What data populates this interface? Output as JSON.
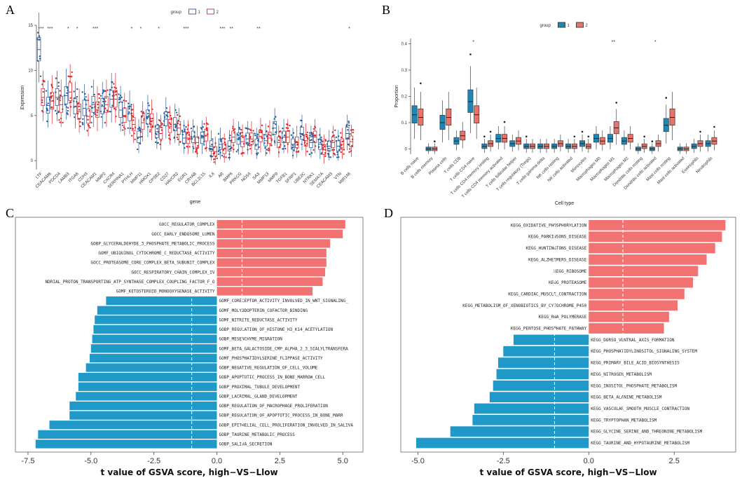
{
  "panels": {
    "a": "A",
    "b": "B",
    "c": "C",
    "d": "D"
  },
  "chart_data": [
    {
      "id": "A",
      "type": "box",
      "legend": {
        "title": "group",
        "entries": [
          "1",
          "2"
        ],
        "placement": "top"
      },
      "colors": {
        "1": "#2a5f9e",
        "2": "#e0262b"
      },
      "xlabel": "gene",
      "ylabel": "Expression",
      "ylim": [
        -1,
        15
      ],
      "yticks": [
        0,
        5,
        10,
        15
      ],
      "categories": [
        "LTF",
        "CEACAM6",
        "PDCD4",
        "LAMB3",
        "ITGA6",
        "CDH3",
        "CEACAM1",
        "MMP2",
        "CXCR4",
        "SERPINA1",
        "PTHLH",
        "MMP11",
        "HMOX1",
        "CPSB2",
        "CD27",
        "HAVCR2",
        "EGR1",
        "CRYAB",
        "BCL2L15",
        "IL6",
        "AR",
        "BMP6",
        "PRKCG",
        "NOS4",
        "SAX",
        "MMP13",
        "MMP9",
        "TGFB1",
        "SFRP1",
        "UBE2C",
        "NTRK1",
        "SEMA7A",
        "CEACAM3",
        "VTN",
        "MIR146"
      ],
      "significance": [
        "***",
        "***",
        "",
        "*",
        "*",
        "",
        "***",
        "",
        "",
        "",
        "*",
        "*",
        "",
        "*",
        "",
        "",
        "***",
        "",
        "",
        "",
        "***",
        "**",
        "",
        "",
        "**",
        "",
        "",
        "",
        "",
        "",
        "",
        "",
        "",
        "",
        "*"
      ],
      "series": [
        {
          "name": "1",
          "median": [
            12.3,
            6.1,
            7.0,
            7.2,
            6.0,
            5.8,
            6.2,
            6.0,
            6.8,
            5.6,
            5.2,
            2.6,
            4.8,
            3.2,
            4.6,
            4.0,
            2.5,
            2.6,
            2.5,
            1.6,
            1.8,
            1.6,
            2.4,
            2.4,
            1.8,
            2.2,
            3.6,
            2.6,
            1.8,
            3.0,
            2.0,
            1.8,
            1.6,
            1.6,
            3.0
          ]
        },
        {
          "name": "2",
          "median": [
            7.0,
            6.6,
            6.2,
            7.6,
            5.4,
            4.9,
            5.6,
            6.2,
            6.8,
            5.0,
            4.0,
            4.2,
            4.4,
            3.0,
            3.8,
            3.6,
            2.5,
            2.0,
            2.8,
            1.0,
            1.3,
            2.6,
            2.1,
            2.4,
            2.7,
            2.5,
            2.0,
            2.6,
            2.0,
            2.2,
            2.6,
            1.2,
            2.0,
            1.8,
            2.1
          ]
        }
      ]
    },
    {
      "id": "B",
      "type": "box",
      "legend": {
        "title": "group",
        "entries": [
          "1",
          "2"
        ],
        "placement": "top"
      },
      "colors": {
        "1": "#1b88b8",
        "2": "#e9726a"
      },
      "xlabel": "Cell type",
      "ylabel": "Proportion",
      "ylim": [
        -0.02,
        0.42
      ],
      "yticks": [
        0.0,
        0.1,
        0.2,
        0.3,
        0.4
      ],
      "categories": [
        "B cells naive",
        "B cells memory",
        "Plasma cells",
        "T cells CD8",
        "T cells CD4 naive",
        "T cells CD4 memory resting",
        "T cells CD4 memory activated",
        "T cells follicular helper",
        "T cells regulatory (Tregs)",
        "T cells gamma delta",
        "NK cells resting",
        "NK cells activated",
        "Monocytes",
        "Macrophages M0",
        "Macrophages M1",
        "Macrophages M2",
        "Dendritic cells resting",
        "Dendritic cells activated",
        "Mast cells resting",
        "Mast cells activated",
        "Eosinophils",
        "Neutrophils"
      ],
      "significance": [
        "",
        "",
        "",
        "",
        "*",
        "",
        "",
        "",
        "",
        "",
        "",
        "",
        "",
        "",
        "**",
        "",
        "",
        "*",
        "",
        "",
        "",
        ""
      ],
      "series": [
        {
          "name": "1",
          "median": [
            0.13,
            0.0,
            0.1,
            0.03,
            0.18,
            0.01,
            0.04,
            0.02,
            0.01,
            0.01,
            0.01,
            0.01,
            0.02,
            0.04,
            0.04,
            0.03,
            0.0,
            0.0,
            0.09,
            0.0,
            0.01,
            0.02
          ]
        },
        {
          "name": "2",
          "median": [
            0.12,
            0.0,
            0.12,
            0.05,
            0.13,
            0.02,
            0.04,
            0.03,
            0.01,
            0.01,
            0.02,
            0.01,
            0.01,
            0.03,
            0.08,
            0.04,
            0.01,
            0.02,
            0.12,
            0.0,
            0.02,
            0.03
          ]
        }
      ]
    },
    {
      "id": "C",
      "type": "bar",
      "orientation": "horizontal",
      "xlabel": "t value of GSVA score, high−VS−Llow",
      "xlim": [
        -8.0,
        5.8
      ],
      "xticks": [
        "-7.5",
        "-5.0",
        "-2.5",
        "0.0",
        "2.5",
        "5.0"
      ],
      "threshold_lines": [
        -1,
        1
      ],
      "colors": {
        "positive": "#f27272",
        "negative": "#1e99c8"
      },
      "categories": [
        "GOCC_REGULATOR_COMPLEX",
        "GOCC_EARLY_ENDOSOME_LUMEN",
        "GOBP_GLYCERALDEHYDE_3_PHOSPHATE_METABOLIC_PROCESS",
        "GOMF_UBIQUINOL_CYTOCHROME_C_REDUCTASE_ACTIVITY",
        "GOCC_PROTEASOME_CORE_COMPLEX_BETA_SUBUNIT_COMPLEX",
        "GOCC_RESPIRATORY_CHAIN_COMPLEX_IV",
        "NDRIAL_PROTON_TRANSPORTING_ATP_SYNTHASE_COMPLEX_COUPLING_FACTOR_F_O",
        "GOMF_KETOSTEROID_MONOOXYGENASE_ACTIVITY",
        "GOMF_CORECEPTOR_ACTIVITY_INVOLVED_IN_WNT_SIGNALING_",
        "GOMF_MOLYBDOPTERIN_COFACTOR_BINDING",
        "GOMF_NITRITE_REDUCTASE_ACTIVITY",
        "GOBP_REGULATION_OF_HISTONE_H3_K14_ACETYLATION",
        "GOBP_MESENCHYME_MIGRATION",
        "GOMF_BETA_GALACTOSIDE_CMP_ALPHA_2_3_SIALYLTRANSFERA",
        "GOMF_PHOSPHATIDYLSERINE_FLIPPASE_ACTIVITY",
        "GOBP_NEGATIVE_REGULATION_OF_CELL_VOLUME",
        "GOBP_APOPTOTIC_PROCESS_IN_BONE_MARROW_CELL",
        "GOBP_PROXIMAL_TUBULE_DEVELOPMENT",
        "GOBP_LACRIMAL_GLAND_DEVELOPMENT",
        "GOBP_REGULATION_OF_MACROPHAGE_PROLIFERATION",
        "GOBP_REGULATION_OF_APOPTOTIC_PROCESS_IN_BONE_MARR",
        "GOBP_EPITHELIAL_CELL_PROLIFERATION_INVOLVED_IN_SALIVA",
        "GOBP_TAURINE_METABOLIC_PROCESS",
        "GOBP_SALIVA_SECRETION"
      ],
      "values": [
        5.1,
        5.0,
        4.5,
        4.35,
        4.35,
        4.3,
        4.2,
        3.8,
        -4.4,
        -4.75,
        -4.85,
        -4.9,
        -4.95,
        -5.0,
        -5.05,
        -5.2,
        -5.5,
        -5.5,
        -5.6,
        -5.85,
        -5.85,
        -6.65,
        -7.1,
        -7.2
      ]
    },
    {
      "id": "D",
      "type": "bar",
      "orientation": "horizontal",
      "xlabel": "t value of GSVA score, high−VS−Llow",
      "xlim": [
        -5.5,
        4.3
      ],
      "xticks": [
        "-5.0",
        "-2.5",
        "0.0",
        "2.5"
      ],
      "threshold_lines": [
        -1,
        1
      ],
      "colors": {
        "positive": "#f27272",
        "negative": "#1e99c8"
      },
      "categories": [
        "KEGG_OXIDATIVE_PHOSPHORYLATION",
        "KEGG_PARKINSONS_DISEASE",
        "KEGG_HUNTINGTONS_DISEASE",
        "KEGG_ALZHEIMERS_DISEASE",
        "KEGG_RIBOSOME",
        "KEGG_PROTEASOME",
        "KEGG_CARDIAC_MUSCLE_CONTRACTION",
        "KEGG_METABOLISM_OF_XENOBIOTICS_BY_CYTOCHROME_P450",
        "KEGG_RNA_POLYMERASE",
        "KEGG_PENTOSE_PHOSPHATE_PATHWAY",
        "KEGG_DORSO_VENTRAL_AXIS_FORMATION",
        "KEGG_PHOSPHATIDYLINOSITOL_SIGNALING_SYSTEM",
        "KEGG_PRIMARY_BILE_ACID_BIOSYNTHESIS",
        "KEGG_NITROGEN_METABOLISM",
        "KEGG_INOSITOL_PHOSPHATE_METABOLISM",
        "KEGG_BETA_ALANINE_METABOLISM",
        "KEGG_VASCULAR_SMOOTH_MUSCLE_CONTRACTION",
        "KEGG_TRYPTOPHAN_METABOLISM",
        "KEGG_GLYCINE_SERINE_AND_THREONINE_METABOLISM",
        "KEGG_TAURINE_AND_HYPOTAURINE_METABOLISM"
      ],
      "values": [
        4.0,
        3.9,
        3.7,
        3.45,
        3.2,
        3.05,
        2.8,
        2.6,
        2.35,
        2.2,
        -2.2,
        -2.5,
        -2.65,
        -2.7,
        -2.8,
        -2.9,
        -3.35,
        -3.4,
        -4.05,
        -5.05
      ]
    }
  ]
}
